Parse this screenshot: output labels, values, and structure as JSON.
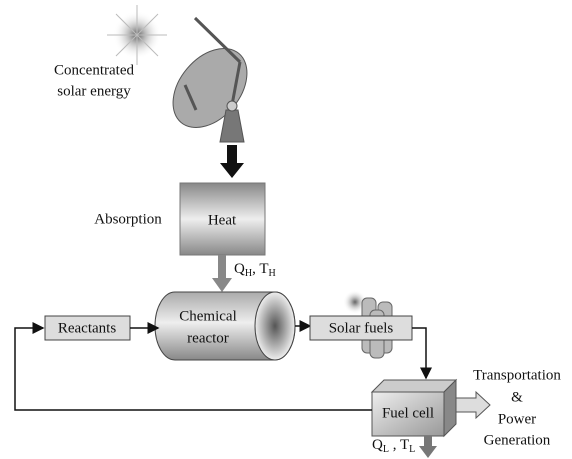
{
  "source": {
    "label_lines": [
      "Concentrated",
      "solar energy"
    ]
  },
  "absorption": {
    "label": "Absorption",
    "box": "Heat"
  },
  "heat_input": {
    "q": "Q",
    "q_sub": "H",
    "sep": ", ",
    "t": "T",
    "t_sub": "H"
  },
  "reactants": "Reactants",
  "reactor": {
    "label_lines": [
      "Chemical",
      "reactor"
    ]
  },
  "solar_fuels": "Solar fuels",
  "fuel_cell": "Fuel cell",
  "output": {
    "label_lines": [
      "Transportation",
      "&",
      "Power",
      "Generation"
    ]
  },
  "heat_output": {
    "q": "Q",
    "q_sub": "L",
    "sep": " , ",
    "t": "T",
    "t_sub": "L"
  }
}
